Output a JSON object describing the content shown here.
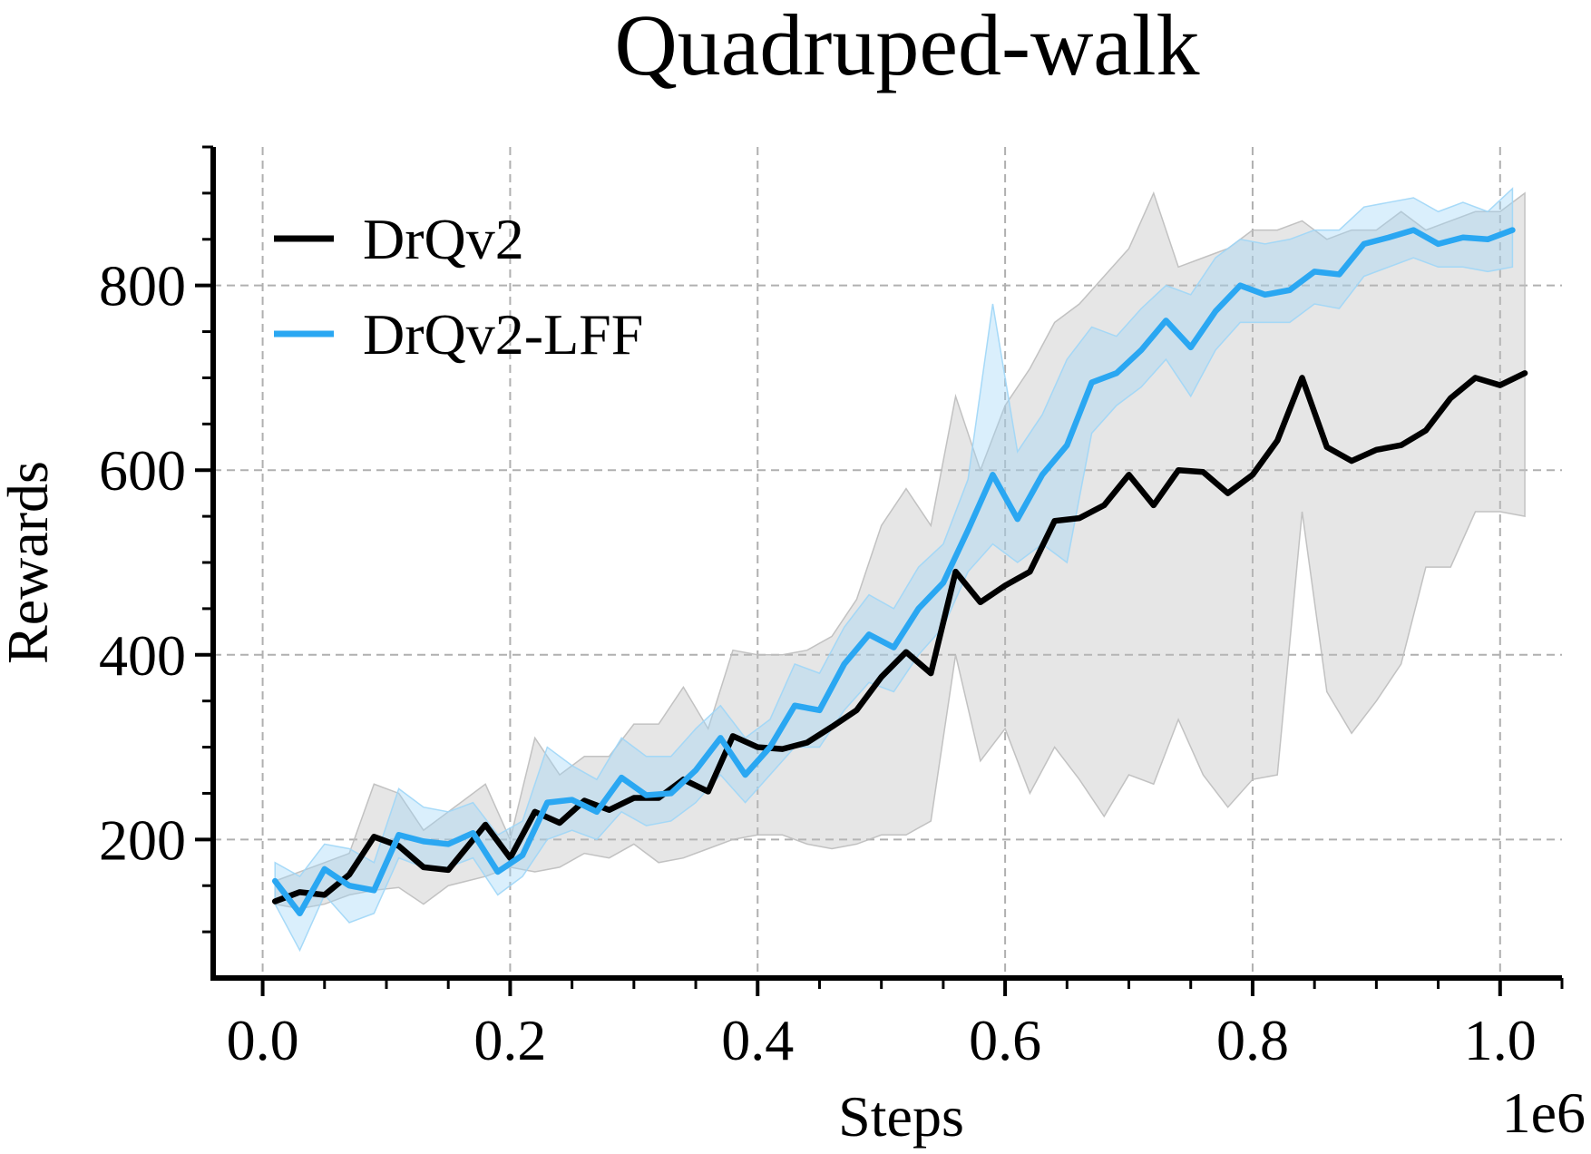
{
  "chart_data": {
    "type": "line",
    "title": "Quadruped-walk",
    "xlabel": "Steps",
    "ylabel": "Rewards",
    "x_offset_label": "1e6",
    "xlim": [
      -0.04,
      1.05
    ],
    "ylim": [
      50,
      950
    ],
    "xticks": [
      0.0,
      0.2,
      0.4,
      0.6,
      0.8,
      1.0
    ],
    "xtick_labels": [
      "0.0",
      "0.2",
      "0.4",
      "0.6",
      "0.8",
      "1.0"
    ],
    "yticks": [
      200,
      400,
      600,
      800
    ],
    "ytick_labels": [
      "200",
      "400",
      "600",
      "800"
    ],
    "grid": true,
    "legend_position": "top-left",
    "series": [
      {
        "name": "DrQv2",
        "color": "#000000",
        "band_color": "#bdbdbd",
        "x": [
          0.01,
          0.03,
          0.05,
          0.07,
          0.09,
          0.11,
          0.13,
          0.15,
          0.18,
          0.2,
          0.22,
          0.24,
          0.26,
          0.28,
          0.3,
          0.32,
          0.34,
          0.36,
          0.38,
          0.4,
          0.42,
          0.44,
          0.46,
          0.48,
          0.5,
          0.52,
          0.54,
          0.56,
          0.58,
          0.6,
          0.62,
          0.64,
          0.66,
          0.68,
          0.7,
          0.72,
          0.74,
          0.76,
          0.78,
          0.8,
          0.82,
          0.84,
          0.86,
          0.88,
          0.9,
          0.92,
          0.94,
          0.96,
          0.98,
          1.0,
          1.02
        ],
        "y": [
          133,
          143,
          140,
          162,
          203,
          193,
          170,
          167,
          216,
          180,
          230,
          218,
          242,
          232,
          245,
          245,
          265,
          252,
          312,
          300,
          298,
          305,
          322,
          340,
          376,
          403,
          380,
          490,
          457,
          475,
          490,
          545,
          548,
          562,
          595,
          562,
          600,
          598,
          575,
          595,
          632,
          700,
          625,
          610,
          622,
          627,
          643,
          678,
          700,
          692,
          705
        ],
        "lower": [
          130,
          125,
          130,
          140,
          145,
          148,
          130,
          150,
          160,
          170,
          165,
          170,
          185,
          180,
          195,
          175,
          180,
          190,
          200,
          205,
          205,
          195,
          190,
          195,
          205,
          205,
          220,
          400,
          285,
          320,
          250,
          300,
          265,
          225,
          270,
          260,
          330,
          270,
          235,
          265,
          270,
          555,
          360,
          315,
          350,
          390,
          495,
          495,
          555,
          555,
          550
        ],
        "upper": [
          155,
          165,
          175,
          185,
          260,
          250,
          210,
          230,
          260,
          200,
          310,
          270,
          290,
          290,
          325,
          325,
          365,
          320,
          405,
          400,
          400,
          405,
          420,
          460,
          540,
          580,
          540,
          680,
          600,
          670,
          710,
          760,
          780,
          810,
          840,
          900,
          820,
          830,
          840,
          860,
          860,
          870,
          850,
          860,
          860,
          880,
          860,
          870,
          880,
          880,
          900
        ]
      },
      {
        "name": "DrQv2-LFF",
        "color": "#2aa7f2",
        "band_color": "#9fd6f7",
        "x": [
          0.01,
          0.03,
          0.05,
          0.07,
          0.09,
          0.11,
          0.13,
          0.15,
          0.17,
          0.19,
          0.21,
          0.23,
          0.25,
          0.27,
          0.29,
          0.31,
          0.33,
          0.35,
          0.37,
          0.39,
          0.41,
          0.43,
          0.45,
          0.47,
          0.49,
          0.51,
          0.53,
          0.55,
          0.57,
          0.59,
          0.61,
          0.63,
          0.65,
          0.67,
          0.69,
          0.71,
          0.73,
          0.75,
          0.77,
          0.79,
          0.81,
          0.83,
          0.85,
          0.87,
          0.89,
          0.91,
          0.93,
          0.95,
          0.97,
          0.99,
          1.01
        ],
        "y": [
          155,
          120,
          168,
          150,
          145,
          205,
          198,
          195,
          207,
          165,
          183,
          240,
          243,
          230,
          267,
          248,
          250,
          275,
          310,
          270,
          300,
          345,
          340,
          390,
          422,
          408,
          450,
          478,
          535,
          595,
          547,
          595,
          627,
          695,
          705,
          730,
          762,
          733,
          772,
          800,
          790,
          795,
          815,
          812,
          845,
          852,
          860,
          845,
          852,
          850,
          860
        ],
        "lower": [
          130,
          80,
          140,
          110,
          120,
          180,
          170,
          170,
          180,
          140,
          160,
          200,
          210,
          200,
          230,
          215,
          220,
          240,
          270,
          240,
          270,
          300,
          300,
          340,
          370,
          360,
          400,
          430,
          490,
          520,
          500,
          520,
          500,
          640,
          670,
          690,
          720,
          680,
          730,
          760,
          760,
          760,
          780,
          775,
          810,
          820,
          830,
          820,
          820,
          815,
          820
        ],
        "upper": [
          175,
          160,
          195,
          190,
          175,
          255,
          235,
          230,
          240,
          205,
          220,
          300,
          280,
          265,
          310,
          290,
          290,
          320,
          345,
          310,
          330,
          390,
          380,
          430,
          465,
          450,
          495,
          520,
          590,
          780,
          620,
          660,
          720,
          755,
          745,
          775,
          800,
          790,
          830,
          850,
          845,
          850,
          860,
          860,
          885,
          890,
          895,
          880,
          890,
          880,
          905
        ]
      }
    ]
  }
}
